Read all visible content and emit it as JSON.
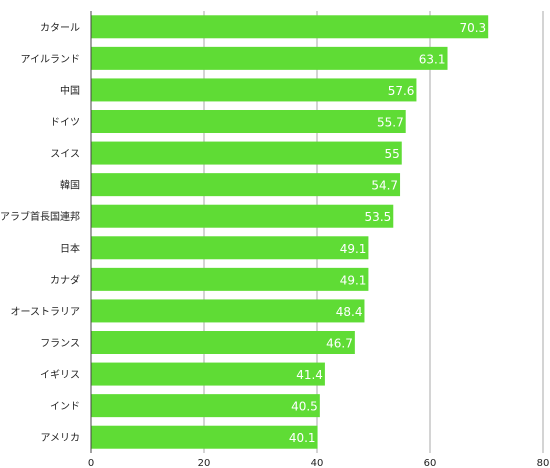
{
  "chart_data": {
    "type": "bar",
    "orientation": "horizontal",
    "categories": [
      "カタール",
      "アイルランド",
      "中国",
      "ドイツ",
      "スイス",
      "韓国",
      "アラブ首長国連邦",
      "日本",
      "カナダ",
      "オーストラリア",
      "フランス",
      "イギリス",
      "インド",
      "アメリカ"
    ],
    "values": [
      70.3,
      63.1,
      57.6,
      55.7,
      55,
      54.7,
      53.5,
      49.1,
      49.1,
      48.4,
      46.7,
      41.4,
      40.5,
      40.1
    ],
    "value_labels": [
      "70.3",
      "63.1",
      "57.6",
      "55.7",
      "55",
      "54.7",
      "53.5",
      "49.1",
      "49.1",
      "48.4",
      "46.7",
      "41.4",
      "40.5",
      "40.1"
    ],
    "x_ticks": [
      "0",
      "20",
      "40",
      "60",
      "80"
    ],
    "xlim": [
      0,
      80
    ],
    "grid": true,
    "legend": "none",
    "bar_color": "#5fdc35"
  }
}
